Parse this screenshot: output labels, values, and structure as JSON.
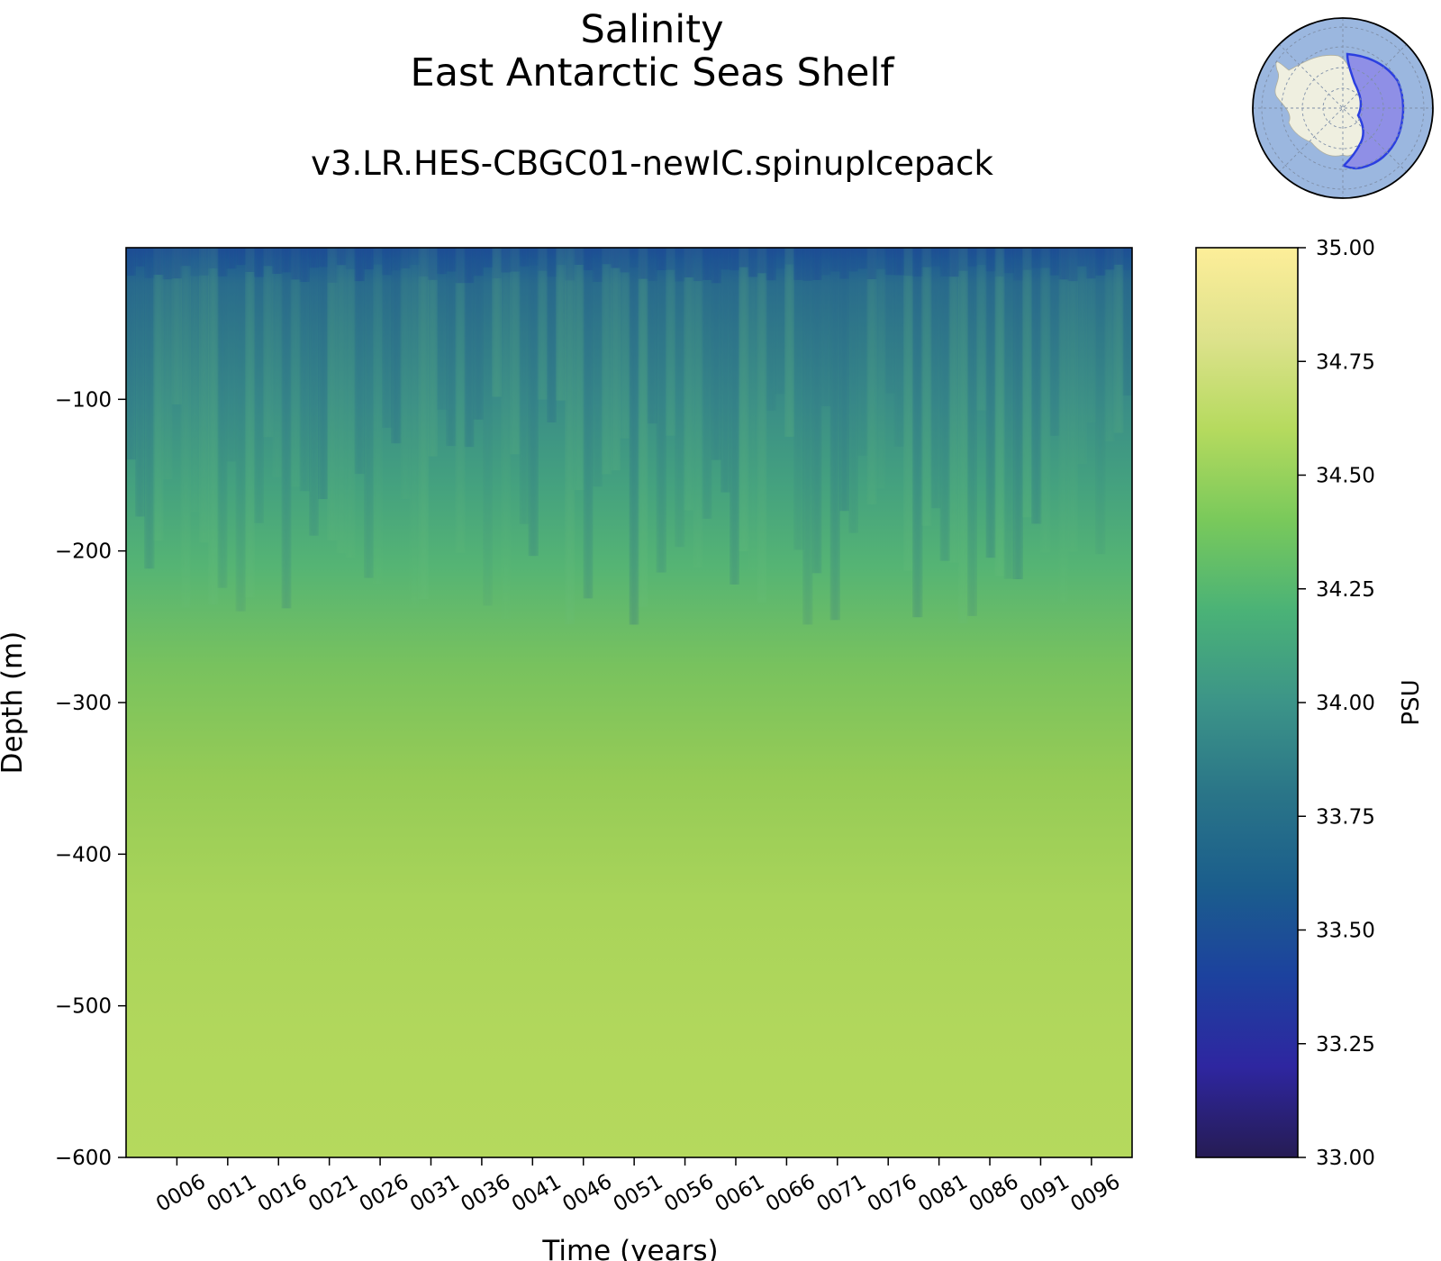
{
  "chart_data": {
    "type": "heatmap",
    "title": "Salinity",
    "region": "East Antarctic Seas Shelf",
    "subtitle": "v3.LR.HES-CBGC01-newIC.spinupIcepack",
    "xlabel": "Time (years)",
    "ylabel": "Depth (m)",
    "colorbar_label": "PSU",
    "x_range": [
      1,
      100
    ],
    "y_range": [
      -600,
      0
    ],
    "x_ticks": [
      "0006",
      "0011",
      "0016",
      "0021",
      "0026",
      "0031",
      "0036",
      "0041",
      "0046",
      "0051",
      "0056",
      "0061",
      "0066",
      "0071",
      "0076",
      "0081",
      "0086",
      "0091",
      "0096"
    ],
    "x_tick_values": [
      6,
      11,
      16,
      21,
      26,
      31,
      36,
      41,
      46,
      51,
      56,
      61,
      66,
      71,
      76,
      81,
      86,
      91,
      96
    ],
    "y_ticks": [
      "−100",
      "−200",
      "−300",
      "−400",
      "−500",
      "−600"
    ],
    "y_tick_values": [
      -100,
      -200,
      -300,
      -400,
      -500,
      -600
    ],
    "color_range": [
      33.0,
      35.0
    ],
    "colorbar_ticks": [
      "33.00",
      "33.25",
      "33.50",
      "33.75",
      "34.00",
      "34.25",
      "34.50",
      "34.75",
      "35.00"
    ],
    "colorbar_tick_values": [
      33.0,
      33.25,
      33.5,
      33.75,
      34.0,
      34.25,
      34.5,
      34.75,
      35.0
    ],
    "colormap": [
      "#261c54",
      "#2e26a0",
      "#1c429e",
      "#1b5e8c",
      "#2a7588",
      "#3c9488",
      "#4ab277",
      "#79c95b",
      "#b5da5e",
      "#fdee99"
    ],
    "depth_profile": {
      "depth": [
        0,
        -10,
        -25,
        -50,
        -75,
        -100,
        -150,
        -200,
        -250,
        -300,
        -350,
        -400,
        -450,
        -500,
        -550,
        -600
      ],
      "salinity": [
        33.55,
        33.68,
        33.8,
        33.92,
        33.98,
        34.03,
        34.15,
        34.27,
        34.38,
        34.46,
        34.56,
        34.62,
        34.65,
        34.66,
        34.67,
        34.67
      ]
    },
    "inset_map": "antarctica-region-map"
  }
}
